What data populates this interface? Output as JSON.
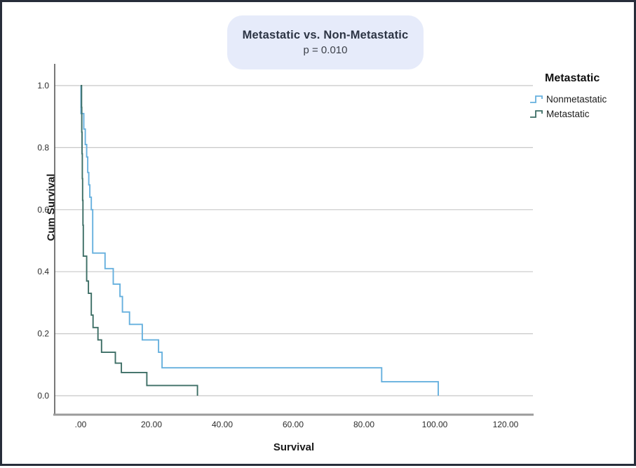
{
  "header": {
    "title": "Metastatic vs. Non-Metastatic",
    "p_value": "p = 0.010"
  },
  "legend": {
    "title": "Metastatic",
    "items": [
      {
        "label": "Nonmetastatic",
        "color": "#66b0de"
      },
      {
        "label": "Metastatic",
        "color": "#3d6e65"
      }
    ]
  },
  "chart_data": {
    "type": "line",
    "subtype": "kaplan-meier-step",
    "title": "Metastatic vs. Non-Metastatic",
    "subtitle": "p = 0.010",
    "xlabel": "Survival",
    "ylabel": "Cum Survival",
    "xlim": [
      -7,
      128
    ],
    "ylim": [
      -0.06,
      1.07
    ],
    "grid": "horizontal",
    "legend_position": "outside-top-right",
    "x_ticks": [
      {
        "label": ".00",
        "value": 0
      },
      {
        "label": "20.00",
        "value": 20
      },
      {
        "label": "40.00",
        "value": 40
      },
      {
        "label": "60.00",
        "value": 60
      },
      {
        "label": "80.00",
        "value": 80
      },
      {
        "label": "100.00",
        "value": 100
      },
      {
        "label": "120.00",
        "value": 120
      }
    ],
    "y_ticks": [
      {
        "label": "0.0",
        "value": 0.0
      },
      {
        "label": "0.2",
        "value": 0.2
      },
      {
        "label": "0.4",
        "value": 0.4
      },
      {
        "label": "0.6",
        "value": 0.6
      },
      {
        "label": "0.8",
        "value": 0.8
      },
      {
        "label": "1.0",
        "value": 1.0
      }
    ],
    "colors": {
      "nonmetastatic": "#66b0de",
      "metastatic": "#3d6e65",
      "gridline": "#c8c8c8",
      "axis_line": "#9b9b9b",
      "spine": "#4d4d4d",
      "badge_bg": "#e6ebfa"
    },
    "series": [
      {
        "name": "Nonmetastatic",
        "color": "#66b0de",
        "points": [
          [
            0,
            1.0
          ],
          [
            0.1,
            0.91
          ],
          [
            0.9,
            0.86
          ],
          [
            1.3,
            0.81
          ],
          [
            1.7,
            0.77
          ],
          [
            2.0,
            0.72
          ],
          [
            2.3,
            0.68
          ],
          [
            2.6,
            0.64
          ],
          [
            3.0,
            0.6
          ],
          [
            3.4,
            0.46
          ],
          [
            6.9,
            0.41
          ],
          [
            9.2,
            0.36
          ],
          [
            11.1,
            0.32
          ],
          [
            11.8,
            0.27
          ],
          [
            13.8,
            0.23
          ],
          [
            17.4,
            0.18
          ],
          [
            22.0,
            0.14
          ],
          [
            23.0,
            0.09
          ],
          [
            85.0,
            0.045
          ],
          [
            101.0,
            0.0
          ]
        ]
      },
      {
        "name": "Metastatic",
        "color": "#3d6e65",
        "points": [
          [
            0,
            1.0
          ],
          [
            0.25,
            0.93
          ],
          [
            0.32,
            0.85
          ],
          [
            0.4,
            0.78
          ],
          [
            0.48,
            0.7
          ],
          [
            0.56,
            0.63
          ],
          [
            0.65,
            0.55
          ],
          [
            0.75,
            0.45
          ],
          [
            1.7,
            0.37
          ],
          [
            2.2,
            0.33
          ],
          [
            3.0,
            0.26
          ],
          [
            3.5,
            0.22
          ],
          [
            4.9,
            0.18
          ],
          [
            5.9,
            0.14
          ],
          [
            9.8,
            0.105
          ],
          [
            11.5,
            0.075
          ],
          [
            18.7,
            0.033
          ],
          [
            33.0,
            0.0
          ]
        ]
      }
    ]
  }
}
